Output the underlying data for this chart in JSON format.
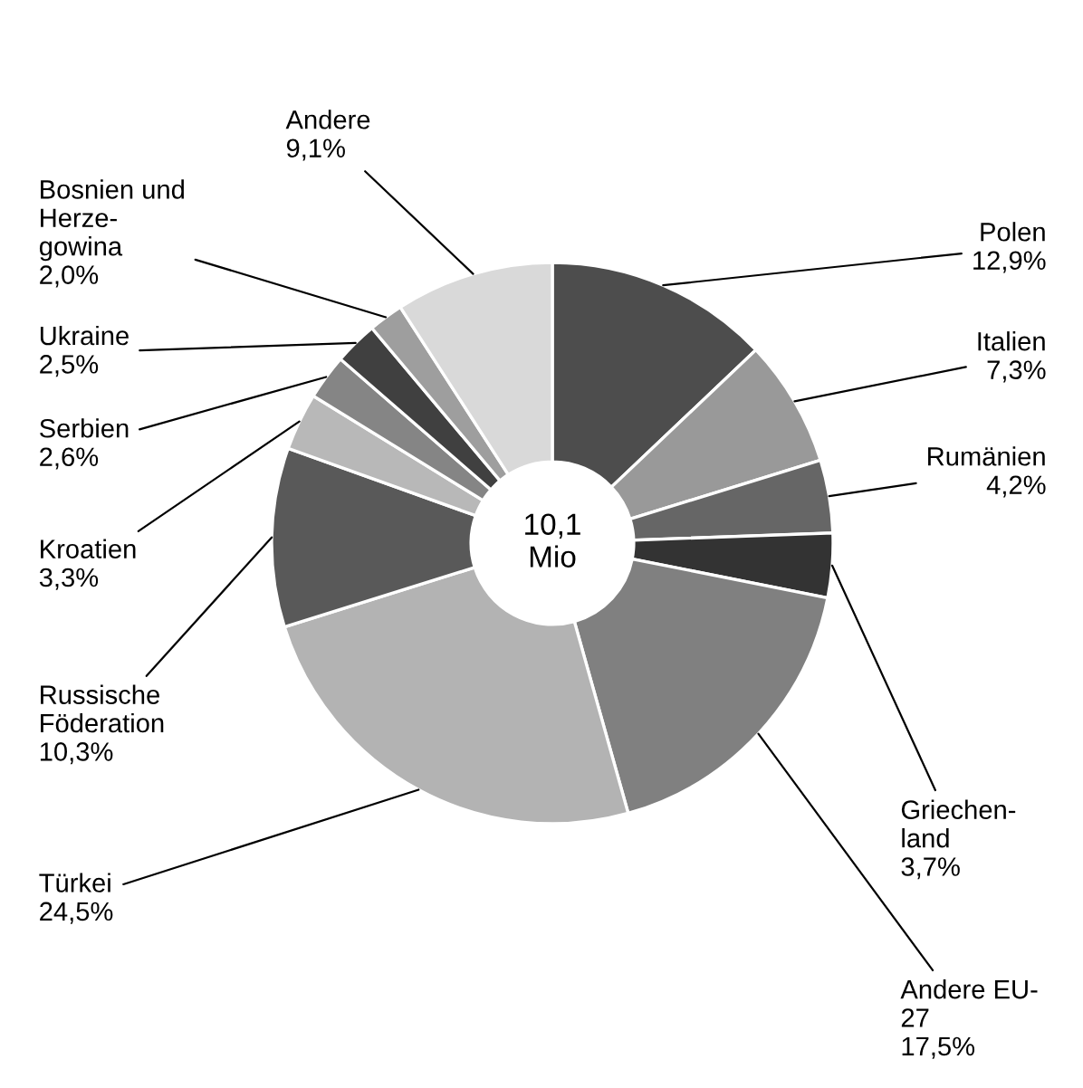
{
  "chart_data": {
    "type": "donut",
    "categories": [
      "Polen",
      "Italien",
      "Rumänien",
      "Griechen-\nland",
      "Andere EU-\n27",
      "Türkei",
      "Russische\nFöderation",
      "Kroatien",
      "Serbien",
      "Ukraine",
      "Bosnien und\nHerze-\ngowina",
      "Andere"
    ],
    "values": [
      12.9,
      7.3,
      4.2,
      3.7,
      17.5,
      24.5,
      10.3,
      3.3,
      2.6,
      2.5,
      2.0,
      9.1
    ],
    "value_labels": [
      "12,9%",
      "7,3%",
      "4,2%",
      "3,7%",
      "17,5%",
      "24,5%",
      "10,3%",
      "3,3%",
      "2,6%",
      "2,5%",
      "2,0%",
      "9,1%"
    ],
    "colors": [
      "#4d4d4d",
      "#999999",
      "#666666",
      "#333333",
      "#808080",
      "#b3b3b3",
      "#595959",
      "#b8b8b8",
      "#858585",
      "#404040",
      "#9e9e9e",
      "#d9d9d9"
    ],
    "annotations": [
      "10,1\nMio"
    ]
  }
}
